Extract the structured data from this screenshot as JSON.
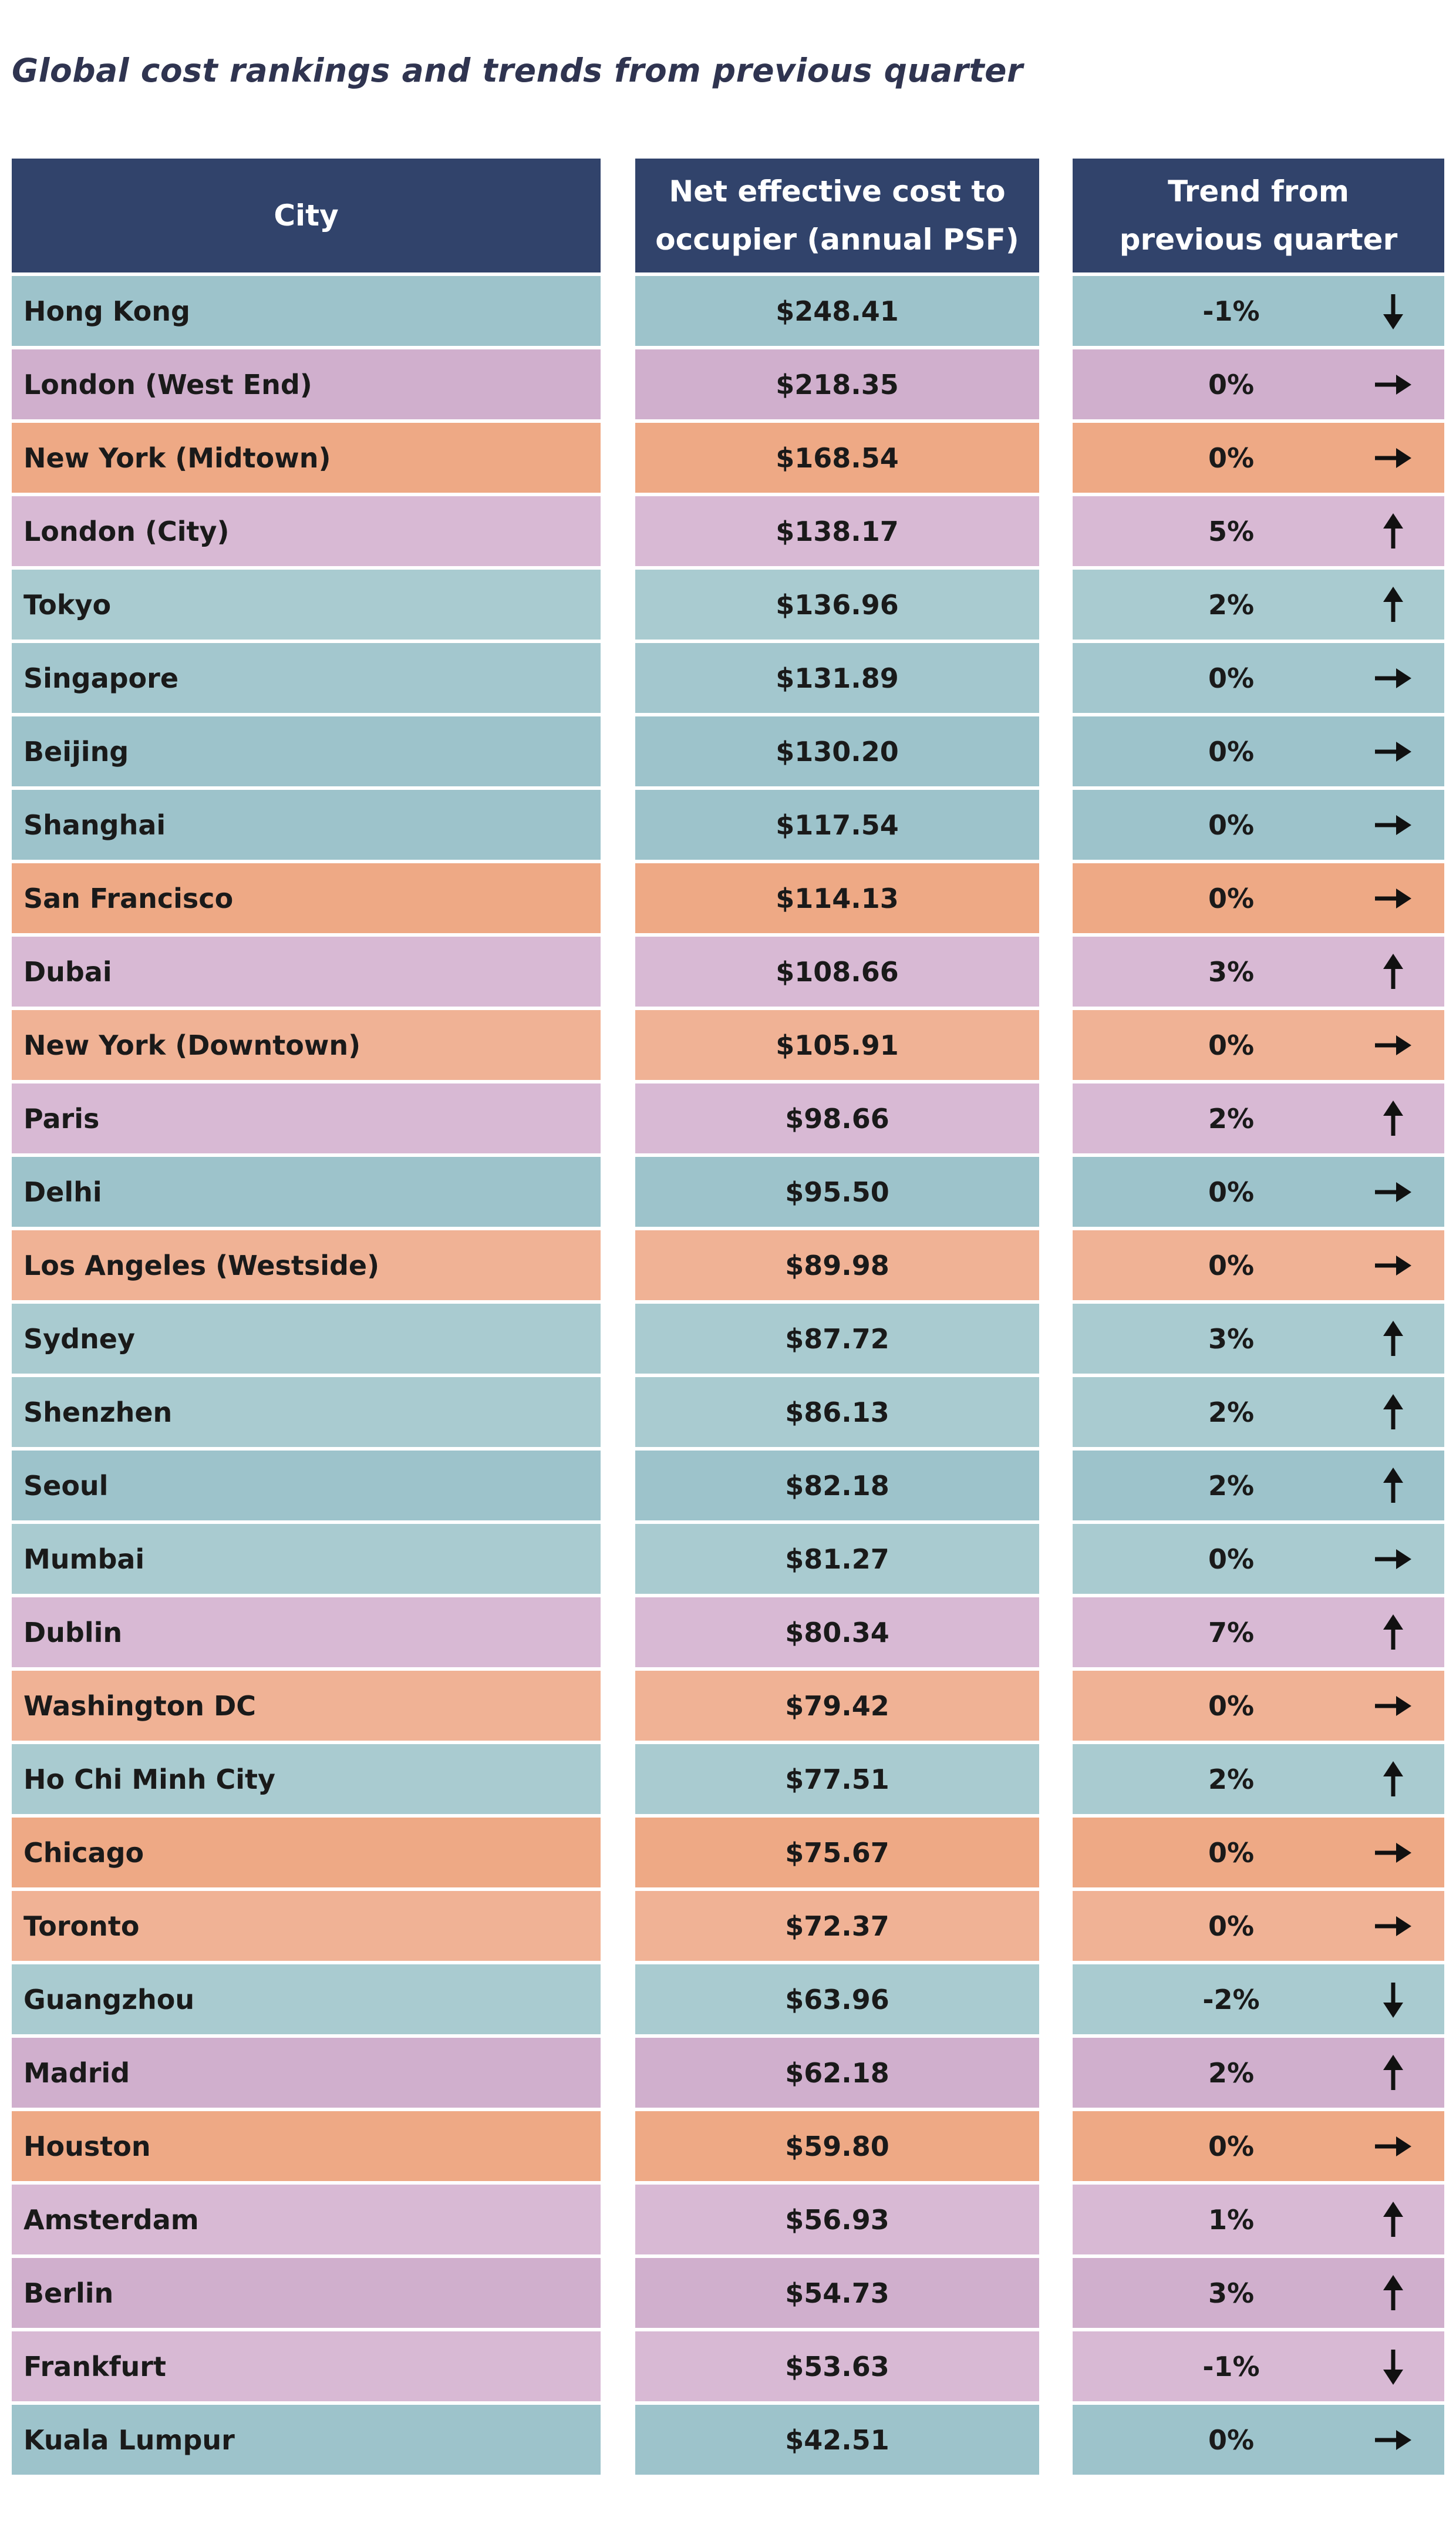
{
  "title": "Global cost rankings and trends from previous quarter",
  "headers": {
    "city": "City",
    "cost": "Net effective cost to\noccupier (annual PSF)",
    "trend": "Trend from\nprevious quarter"
  },
  "colors": {
    "header": "#31436b",
    "teal_dark": "#9dc3cb",
    "teal_light": "#a9cbd0",
    "purple_dark": "#d0afcd",
    "purple_light": "#d8b9d4",
    "orange_dark": "#eea985",
    "orange_light": "#f0b295"
  },
  "rows": [
    {
      "city": "Hong Kong",
      "cost": "$248.41",
      "trend": "-1%",
      "dir": "down",
      "color": "#9dc3cb"
    },
    {
      "city": "London (West End)",
      "cost": "$218.35",
      "trend": "0%",
      "dir": "right",
      "color": "#d0afcd"
    },
    {
      "city": "New York (Midtown)",
      "cost": "$168.54",
      "trend": "0%",
      "dir": "right",
      "color": "#eea985"
    },
    {
      "city": "London (City)",
      "cost": "$138.17",
      "trend": "5%",
      "dir": "up",
      "color": "#d8b9d4"
    },
    {
      "city": "Tokyo",
      "cost": "$136.96",
      "trend": "2%",
      "dir": "up",
      "color": "#a9cbd0"
    },
    {
      "city": "Singapore",
      "cost": "$131.89",
      "trend": "0%",
      "dir": "right",
      "color": "#a3c7ce"
    },
    {
      "city": "Beijing",
      "cost": "$130.20",
      "trend": "0%",
      "dir": "right",
      "color": "#9dc3cb"
    },
    {
      "city": "Shanghai",
      "cost": "$117.54",
      "trend": "0%",
      "dir": "right",
      "color": "#9dc3cb"
    },
    {
      "city": "San Francisco",
      "cost": "$114.13",
      "trend": "0%",
      "dir": "right",
      "color": "#eea985"
    },
    {
      "city": "Dubai",
      "cost": "$108.66",
      "trend": "3%",
      "dir": "up",
      "color": "#d8b9d4"
    },
    {
      "city": "New York (Downtown)",
      "cost": "$105.91",
      "trend": "0%",
      "dir": "right",
      "color": "#f0b295"
    },
    {
      "city": "Paris",
      "cost": "$98.66",
      "trend": "2%",
      "dir": "up",
      "color": "#d8b9d4"
    },
    {
      "city": "Delhi",
      "cost": "$95.50",
      "trend": "0%",
      "dir": "right",
      "color": "#9dc3cb"
    },
    {
      "city": "Los Angeles (Westside)",
      "cost": "$89.98",
      "trend": "0%",
      "dir": "right",
      "color": "#f0b295"
    },
    {
      "city": "Sydney",
      "cost": "$87.72",
      "trend": "3%",
      "dir": "up",
      "color": "#a9cbd0"
    },
    {
      "city": "Shenzhen",
      "cost": "$86.13",
      "trend": "2%",
      "dir": "up",
      "color": "#a9cbd0"
    },
    {
      "city": "Seoul",
      "cost": "$82.18",
      "trend": "2%",
      "dir": "up",
      "color": "#9dc3cb"
    },
    {
      "city": "Mumbai",
      "cost": "$81.27",
      "trend": "0%",
      "dir": "right",
      "color": "#a9cbd0"
    },
    {
      "city": "Dublin",
      "cost": "$80.34",
      "trend": "7%",
      "dir": "up",
      "color": "#d8b9d4"
    },
    {
      "city": "Washington DC",
      "cost": "$79.42",
      "trend": "0%",
      "dir": "right",
      "color": "#f0b295"
    },
    {
      "city": "Ho Chi Minh City",
      "cost": "$77.51",
      "trend": "2%",
      "dir": "up",
      "color": "#a9cbd0"
    },
    {
      "city": "Chicago",
      "cost": "$75.67",
      "trend": "0%",
      "dir": "right",
      "color": "#eea985"
    },
    {
      "city": "Toronto",
      "cost": "$72.37",
      "trend": "0%",
      "dir": "right",
      "color": "#f0b295"
    },
    {
      "city": "Guangzhou",
      "cost": "$63.96",
      "trend": "-2%",
      "dir": "down",
      "color": "#a9cbd0"
    },
    {
      "city": "Madrid",
      "cost": "$62.18",
      "trend": "2%",
      "dir": "up",
      "color": "#d0afcd"
    },
    {
      "city": "Houston",
      "cost": "$59.80",
      "trend": "0%",
      "dir": "right",
      "color": "#eea985"
    },
    {
      "city": "Amsterdam",
      "cost": "$56.93",
      "trend": "1%",
      "dir": "up",
      "color": "#d8b9d4"
    },
    {
      "city": "Berlin",
      "cost": "$54.73",
      "trend": "3%",
      "dir": "up",
      "color": "#d0afcd"
    },
    {
      "city": "Frankfurt",
      "cost": "$53.63",
      "trend": "-1%",
      "dir": "down",
      "color": "#d8b9d4"
    },
    {
      "city": "Kuala Lumpur",
      "cost": "$42.51",
      "trend": "0%",
      "dir": "right",
      "color": "#9dc3cb"
    }
  ]
}
